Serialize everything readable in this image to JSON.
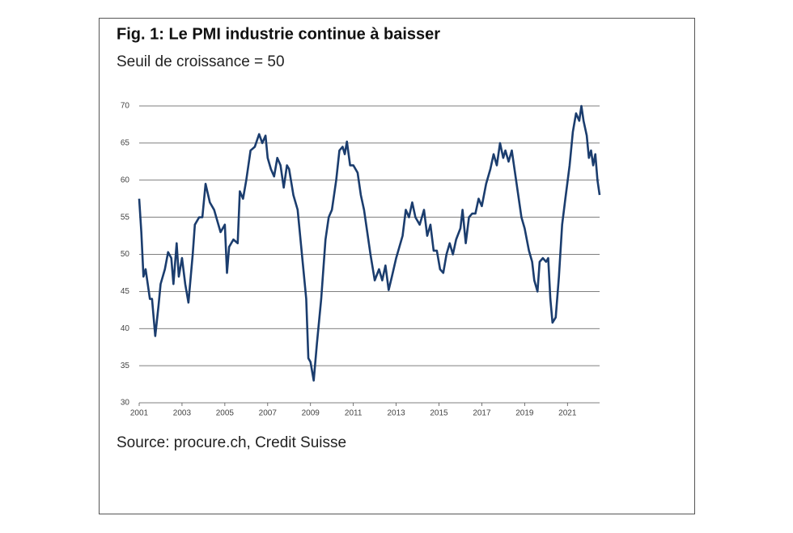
{
  "chart_data": {
    "type": "line",
    "title": "Fig. 1: Le PMI industrie continue à baisser",
    "subtitle": "Seuil de croissance = 50",
    "source": "Source: procure.ch, Credit Suisse",
    "color": "#1b3d6e",
    "grid": true,
    "xlim": [
      2001,
      2022.5
    ],
    "xticks": [
      2001,
      2003,
      2005,
      2007,
      2009,
      2011,
      2013,
      2015,
      2017,
      2019,
      2021
    ],
    "ylim": [
      30,
      70
    ],
    "yticks": [
      30,
      35,
      40,
      45,
      50,
      55,
      60,
      65,
      70
    ],
    "x": [
      2001.0,
      2001.1,
      2001.2,
      2001.3,
      2001.4,
      2001.5,
      2001.6,
      2001.75,
      2001.9,
      2002.0,
      2002.2,
      2002.35,
      2002.5,
      2002.6,
      2002.75,
      2002.85,
      2003.0,
      2003.15,
      2003.3,
      2003.5,
      2003.6,
      2003.8,
      2003.95,
      2004.1,
      2004.3,
      2004.5,
      2004.6,
      2004.8,
      2005.0,
      2005.1,
      2005.2,
      2005.4,
      2005.6,
      2005.7,
      2005.85,
      2006.0,
      2006.2,
      2006.4,
      2006.6,
      2006.75,
      2006.9,
      2007.0,
      2007.15,
      2007.3,
      2007.45,
      2007.6,
      2007.75,
      2007.9,
      2008.0,
      2008.2,
      2008.4,
      2008.6,
      2008.8,
      2008.9,
      2009.0,
      2009.15,
      2009.3,
      2009.5,
      2009.7,
      2009.85,
      2010.0,
      2010.2,
      2010.35,
      2010.5,
      2010.6,
      2010.7,
      2010.85,
      2011.0,
      2011.2,
      2011.35,
      2011.5,
      2011.65,
      2011.8,
      2012.0,
      2012.2,
      2012.35,
      2012.5,
      2012.65,
      2012.8,
      2013.0,
      2013.15,
      2013.3,
      2013.45,
      2013.6,
      2013.75,
      2013.9,
      2014.1,
      2014.3,
      2014.45,
      2014.6,
      2014.75,
      2014.9,
      2015.05,
      2015.2,
      2015.35,
      2015.5,
      2015.65,
      2015.8,
      2016.0,
      2016.1,
      2016.25,
      2016.4,
      2016.55,
      2016.7,
      2016.85,
      2017.0,
      2017.2,
      2017.4,
      2017.55,
      2017.7,
      2017.85,
      2018.0,
      2018.1,
      2018.25,
      2018.4,
      2018.55,
      2018.7,
      2018.85,
      2019.0,
      2019.2,
      2019.35,
      2019.45,
      2019.6,
      2019.7,
      2019.85,
      2020.0,
      2020.1,
      2020.2,
      2020.3,
      2020.45,
      2020.6,
      2020.75,
      2020.9,
      2021.1,
      2021.25,
      2021.4,
      2021.55,
      2021.65,
      2021.75,
      2021.9,
      2022.0,
      2022.1,
      2022.2,
      2022.3,
      2022.4,
      2022.5
    ],
    "values": [
      57.5,
      53,
      47,
      48,
      46,
      44,
      44,
      39,
      43,
      46,
      48,
      50.3,
      49.5,
      46,
      51.5,
      47,
      49.5,
      46,
      43.5,
      50,
      54,
      55,
      55,
      59.5,
      57,
      56,
      55,
      53,
      54,
      47.5,
      51,
      52,
      51.5,
      58.5,
      57.5,
      60,
      64,
      64.5,
      66.2,
      65,
      66,
      63,
      61.5,
      60.5,
      63,
      62,
      59,
      62,
      61.5,
      58,
      56,
      50,
      44,
      36,
      35.5,
      33,
      38,
      44,
      52,
      55,
      56,
      60,
      64,
      64.5,
      63.5,
      65.2,
      62,
      62,
      61,
      58,
      56,
      53,
      50,
      46.5,
      48,
      46.5,
      48.5,
      45.2,
      47,
      49.5,
      51,
      52.5,
      56,
      55,
      57,
      55,
      54,
      56,
      52.5,
      54,
      50.5,
      50.5,
      48,
      47.5,
      50,
      51.5,
      50,
      52,
      53.5,
      56,
      51.5,
      55,
      55.5,
      55.5,
      57.5,
      56.5,
      59.5,
      61.5,
      63.5,
      62,
      65,
      63,
      64,
      62.5,
      64,
      61,
      58,
      55,
      53.5,
      50.5,
      49,
      46.5,
      45,
      49,
      49.5,
      49,
      49.5,
      44,
      40.8,
      41.5,
      47,
      54,
      57.5,
      62,
      66.5,
      69,
      68,
      70,
      68,
      66,
      63,
      64,
      62,
      63.5,
      60,
      58
    ]
  }
}
